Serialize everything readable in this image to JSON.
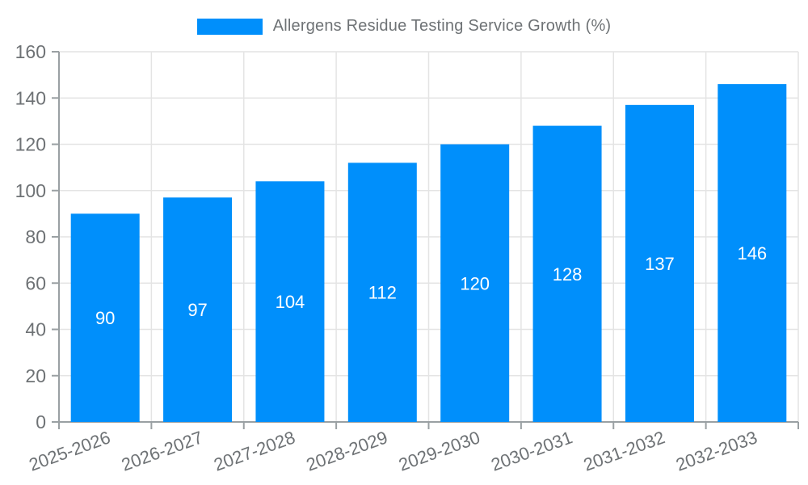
{
  "chart_data": {
    "type": "bar",
    "title": "Allergens Residue Testing Service Growth (%)",
    "categories": [
      "2025-2026",
      "2026-2027",
      "2027-2028",
      "2028-2029",
      "2029-2030",
      "2030-2031",
      "2031-2032",
      "2032-2033"
    ],
    "values": [
      90,
      97,
      104,
      112,
      120,
      128,
      137,
      146
    ],
    "xlabel": "",
    "ylabel": "",
    "ylim": [
      0,
      160
    ],
    "ytick_step": 20,
    "yticks": [
      0,
      20,
      40,
      60,
      80,
      100,
      120,
      140,
      160
    ],
    "grid": true,
    "legend_position": "top",
    "x_label_rotation_deg": -20,
    "colors": {
      "bar": "#008FFB",
      "bar_value_label": "#ffffff",
      "grid_line": "#e4e4e4",
      "axis_line": "#9aa0a3",
      "tick_label": "#6e7275",
      "legend_text": "#6e7275",
      "background": "#ffffff"
    }
  }
}
